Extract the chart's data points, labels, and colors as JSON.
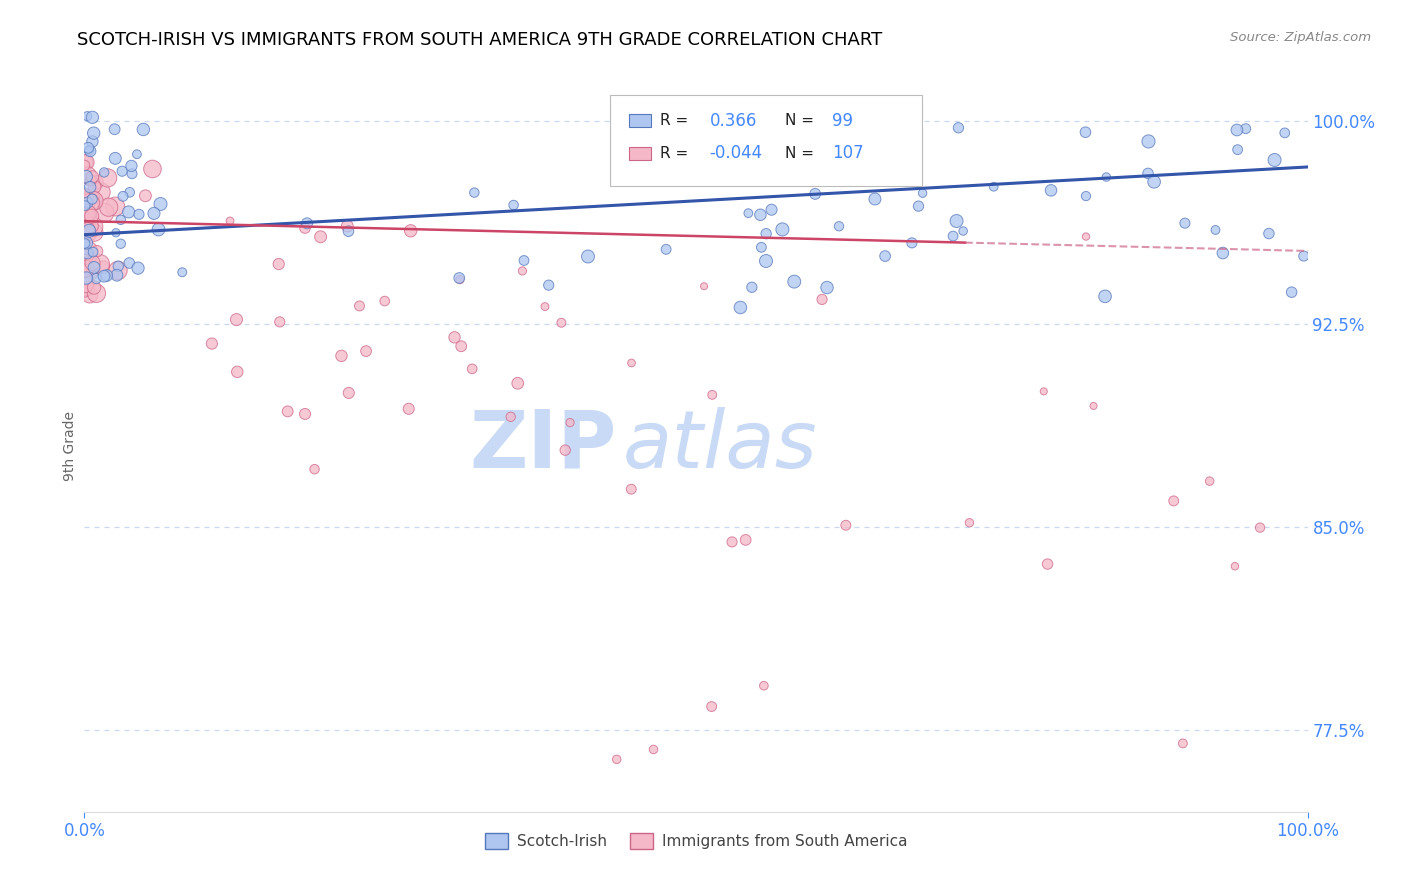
{
  "title": "SCOTCH-IRISH VS IMMIGRANTS FROM SOUTH AMERICA 9TH GRADE CORRELATION CHART",
  "source_text": "Source: ZipAtlas.com",
  "ylabel": "9th Grade",
  "xlim": [
    0.0,
    1.0
  ],
  "ylim": [
    0.745,
    1.015
  ],
  "yticks": [
    0.775,
    0.85,
    0.925,
    1.0
  ],
  "ytick_labels": [
    "77.5%",
    "85.0%",
    "92.5%",
    "100.0%"
  ],
  "xtick_labels": [
    "0.0%",
    "100.0%"
  ],
  "title_fontsize": 13,
  "axis_color": "#4488ff",
  "watermark_line1": "ZIP",
  "watermark_line2": "atlas",
  "watermark_color": "#c8daf5",
  "legend_labels": [
    "Scotch-Irish",
    "Immigrants from South America"
  ],
  "blue_fill": "#aec6f0",
  "blue_edge": "#5577bb",
  "pink_fill": "#f5b8c8",
  "pink_edge": "#cc6688",
  "blue_line_color": "#3355aa",
  "pink_line_color": "#cc4466",
  "R_blue": 0.366,
  "N_blue": 99,
  "R_pink": -0.044,
  "N_pink": 107,
  "background_color": "#ffffff",
  "grid_color": "#c8d8f0",
  "blue_trend_x": [
    0.0,
    1.0
  ],
  "blue_trend_y": [
    0.958,
    0.983
  ],
  "pink_trend_x": [
    0.0,
    1.0
  ],
  "pink_trend_y": [
    0.963,
    0.952
  ],
  "pink_trend_solid_end": 0.72
}
